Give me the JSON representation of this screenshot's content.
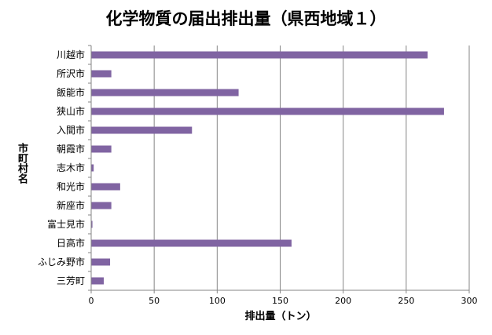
{
  "chart_data": {
    "type": "bar",
    "orientation": "horizontal",
    "title": "化学物質の届出排出量（県西地域１）",
    "xlabel": "排出量（トン）",
    "ylabel": "市町村名",
    "categories": [
      "川越市",
      "所沢市",
      "飯能市",
      "狭山市",
      "入間市",
      "朝霞市",
      "志木市",
      "和光市",
      "新座市",
      "富士見市",
      "日高市",
      "ふじみ野市",
      "三芳町"
    ],
    "values": [
      267,
      16,
      117,
      280,
      80,
      16,
      2,
      23,
      16,
      1,
      159,
      15,
      10
    ],
    "xlim": [
      0,
      300
    ],
    "xticks": [
      0,
      50,
      100,
      150,
      200,
      250,
      300
    ],
    "grid": true,
    "legend": "none",
    "colors": {
      "bar": "#8064a2",
      "grid": "#868686",
      "axis": "#868686"
    }
  }
}
